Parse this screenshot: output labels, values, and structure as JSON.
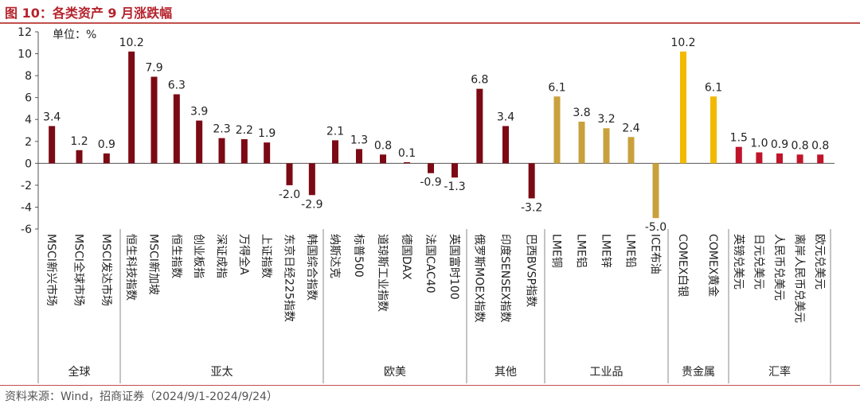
{
  "header": {
    "title": "图 10：各类资产 9 月涨跌幅"
  },
  "footer": {
    "source": "资料来源：Wind，招商证券（2024/9/1-2024/9/24）"
  },
  "chart_data": {
    "type": "bar",
    "title": "图 10：各类资产 9 月涨跌幅",
    "unit_label": "单位：%",
    "ylim": [
      -6,
      12
    ],
    "yticks": [
      -6,
      -4,
      -2,
      0,
      2,
      4,
      6,
      8,
      10,
      12
    ],
    "grid": false,
    "legend": "none",
    "groups": [
      {
        "name": "全球",
        "color": "#7b0a14",
        "items": [
          {
            "label": "MSCI新兴市场",
            "value": 3.4
          },
          {
            "label": "MSCI全球市场",
            "value": 1.2
          },
          {
            "label": "MSCI发达市场",
            "value": 0.9
          }
        ]
      },
      {
        "name": "亚太",
        "color": "#7b0a14",
        "items": [
          {
            "label": "恒生科技指数",
            "value": 10.2
          },
          {
            "label": "MSCI新加坡",
            "value": 7.9
          },
          {
            "label": "恒生指数",
            "value": 6.3
          },
          {
            "label": "创业板指",
            "value": 3.9
          },
          {
            "label": "深证成指",
            "value": 2.3
          },
          {
            "label": "万得全A",
            "value": 2.2
          },
          {
            "label": "上证指数",
            "value": 1.9
          },
          {
            "label": "东京日经225指数",
            "value": -2.0
          },
          {
            "label": "韩国综合指数",
            "value": -2.9
          }
        ]
      },
      {
        "name": "欧美",
        "color": "#7b0a14",
        "items": [
          {
            "label": "纳斯达克",
            "value": 2.1
          },
          {
            "label": "标普500",
            "value": 1.3
          },
          {
            "label": "道琼斯工业指数",
            "value": 0.8
          },
          {
            "label": "德国DAX",
            "value": 0.1
          },
          {
            "label": "法国CAC40",
            "value": -0.9
          },
          {
            "label": "英国富时100",
            "value": -1.3
          }
        ]
      },
      {
        "name": "其他",
        "color": "#7b0a14",
        "items": [
          {
            "label": "俄罗斯MOEX指数",
            "value": 6.8
          },
          {
            "label": "印度SENSEX指数",
            "value": 3.4
          },
          {
            "label": "巴西BVSP指数",
            "value": -3.2
          }
        ]
      },
      {
        "name": "工业品",
        "color": "#c9a13c",
        "items": [
          {
            "label": "LME铜",
            "value": 6.1
          },
          {
            "label": "LME铝",
            "value": 3.8
          },
          {
            "label": "LME锌",
            "value": 3.2
          },
          {
            "label": "LME铅",
            "value": 2.4
          },
          {
            "label": "ICE布油",
            "value": -5.0
          }
        ]
      },
      {
        "name": "贵金属",
        "color": "#f2b900",
        "items": [
          {
            "label": "COMEX白银",
            "value": 10.2
          },
          {
            "label": "COMEX黄金",
            "value": 6.1
          }
        ]
      },
      {
        "name": "汇率",
        "color": "#c0142a",
        "items": [
          {
            "label": "英镑兑美元",
            "value": 1.5
          },
          {
            "label": "日元兑美元",
            "value": 1.0
          },
          {
            "label": "人民币兑美元",
            "value": 0.9
          },
          {
            "label": "离岸人民币兑美元",
            "value": 0.8
          },
          {
            "label": "欧元兑美元",
            "value": 0.8
          }
        ]
      }
    ]
  }
}
